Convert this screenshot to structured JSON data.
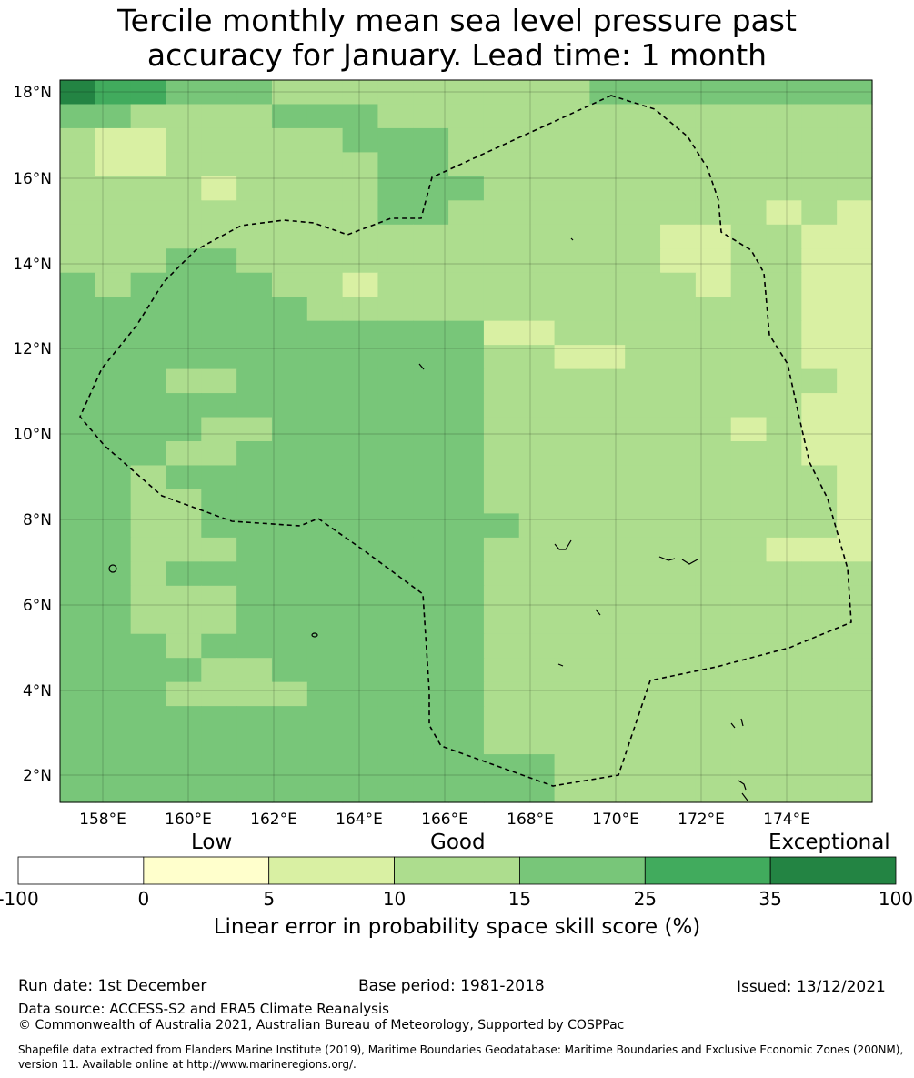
{
  "title_line1": "Tercile monthly mean sea level pressure past",
  "title_line2": "accuracy for January. Lead time: 1 month",
  "map": {
    "lat_ticks": [
      "18°N",
      "16°N",
      "14°N",
      "12°N",
      "10°N",
      "8°N",
      "6°N",
      "4°N",
      "2°N"
    ],
    "lon_ticks": [
      "158°E",
      "160°E",
      "162°E",
      "164°E",
      "166°E",
      "168°E",
      "170°E",
      "172°E",
      "174°E"
    ],
    "eez_outline": "dashed boundary",
    "cells_grid": [
      "FEEDDDCCCCCCCCCDDDDDDDD",
      "DDCCCCDDDCCCCCCCCCCCCCC",
      "CBBCCCCCDDDCCCCCCCCCCCC",
      "CBBCCCCCCDDCCCCCCCCCCCC",
      "CCCCBCCCCDDDCCCCCCCCCCC",
      "CCCCCCCCCDDCCCCCCCCCBCB",
      "CCCCCCCCCCCCCCCCCBBCCBB",
      "CCCDDCCCCCCCCCCCCBBCCBB",
      "DCDDDDCCBCCCCCCCCCBCCBB",
      "DDDDDDDCCCCCCCCCCCCCCBB",
      "DDDDDDDDDDDDBBCCCCCCCBB",
      "DDDDDDDDDDDDCCBBCCCCCBB",
      "DDDCCDDDDDDDCCCCCCCCCCB",
      "DDDDDDDDDDDDCCCCCCCCCBB",
      "DDDDCCDDDDDDCCCCCCCBCBB",
      "DDDCCDDDDDDDCCCCCCCCCBB",
      "DDCDDDDDDDDDCCCCCCCCCCB",
      "DDCCDDDDDDDDCCCCCCCCCCB",
      "DDCCDDDDDDDDDCCCCCCCCCB",
      "DDCCCDDDDDDDCCCCCCCCBBB",
      "DDCDDDDDDDDDCCCCCCCCCCC",
      "DDCCCDDDDDDDCCCCCCCCCCC",
      "DDCCCDDDDDDDCCCCCCCCCCC",
      "DDDCDDDDDDDDCCCCCCCCCCC",
      "DDDDCCDDDDDDCCCCCCCCCCC",
      "DDDCCCCDDDDDCCCCCCCCCCC",
      "DDDDDDDDDDDDCCCCCCCCCCC",
      "DDDDDDDDDDDDCCCCCCCCCCC",
      "DDDDDDDDDDDDDDCCCCCCCCC",
      "DDDDDDDDDDDDDDCCCCCCCCC"
    ]
  },
  "colorbar": {
    "category_labels": [
      "Low",
      "Good",
      "Exceptional"
    ],
    "tick_labels": [
      "-100",
      "0",
      "5",
      "10",
      "15",
      "25",
      "35",
      "100"
    ],
    "colors": [
      "#ffffff",
      "#ffffcc",
      "#d9f0a3",
      "#addd8e",
      "#78c679",
      "#41ab5d",
      "#238443"
    ],
    "title": "Linear error in probability space skill score (%)"
  },
  "footer": {
    "run_date": "Run date: 1st December",
    "base_period": "Base period: 1981-2018",
    "issued": "Issued: 13/12/2021",
    "data_source": "Data source: ACCESS-S2 and ERA5 Climate Reanalysis",
    "copyright": "© Commonwealth of Australia 2021, Australian Bureau of Meteorology, Supported by COSPPac",
    "shapefile": "Shapefile data extracted from Flanders Marine Institute (2019), Maritime Boundaries Geodatabase: Maritime Boundaries and Exclusive Economic Zones (200NM), version 11. Available online at http://www.marineregions.org/."
  }
}
